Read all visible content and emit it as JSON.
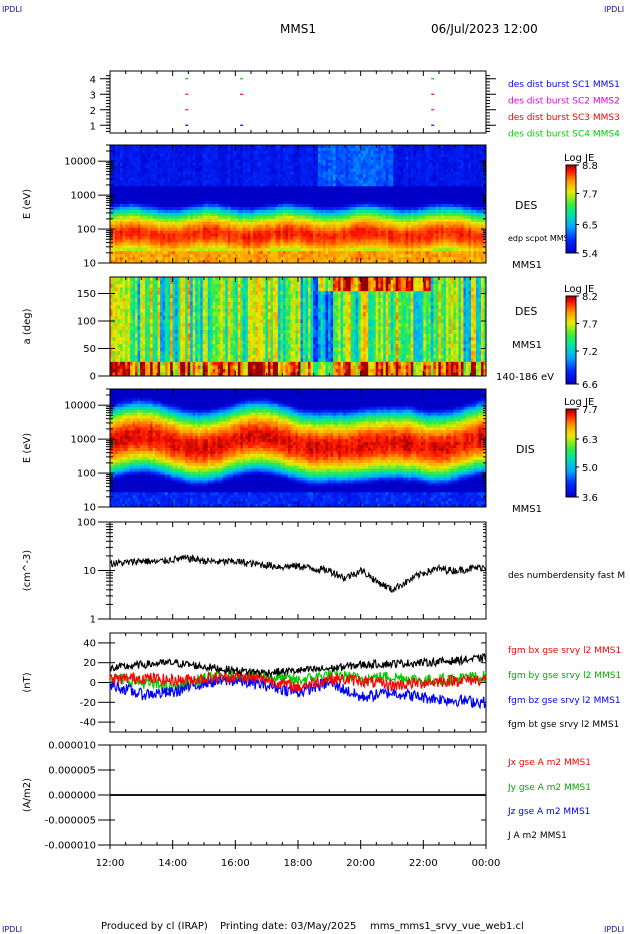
{
  "header": {
    "corner_left_top": "IPDLI",
    "corner_right_top": "IPDLI",
    "mission": "MMS1",
    "datetime": "06/Jul/2023 12:00",
    "corner_left_bottom": "IPDLI",
    "corner_right_bottom": "IPDLI"
  },
  "footer": {
    "produced_by": "Produced by cl (IRAP)",
    "printing_date": "Printing date: 03/May/2025",
    "file": "mms_mms1_srvy_vue_web1.cl"
  },
  "colors": {
    "blue": "#0000ff",
    "magenta": "#e000e0",
    "red": "#ff0000",
    "green": "#00cc00",
    "black": "#000000"
  },
  "chart_data": [
    {
      "id": "burst",
      "type": "scatter",
      "ylim": [
        0.5,
        4.5
      ],
      "yticks": [
        "1",
        "2",
        "3",
        "4"
      ],
      "series": [
        {
          "name": "des dist burst SC1 MMS1",
          "color": "#0000ff",
          "y": 1,
          "x": [
            14.45,
            16.2,
            22.3
          ]
        },
        {
          "name": "des dist burst SC2 MMS2",
          "color": "#e000e0",
          "y": 2,
          "x": [
            14.45,
            22.3
          ]
        },
        {
          "name": "des dist burst SC3 MMS3",
          "color": "#ff0000",
          "y": 3,
          "x": [
            14.45,
            16.2,
            22.3
          ]
        },
        {
          "name": "des dist burst SC4 MMS4",
          "color": "#00cc00",
          "y": 4,
          "x": [
            14.45,
            16.2,
            22.3
          ]
        }
      ]
    },
    {
      "id": "des_energy",
      "type": "heatmap",
      "ylabel": "E (eV)",
      "yscale": "log",
      "ylim": [
        10,
        30000
      ],
      "yticks": [
        "10",
        "100",
        "1000",
        "10000"
      ],
      "label": "DES",
      "sublabel": "MMS1",
      "overlay_label": "edp scpot MMS1",
      "colorbar": {
        "title": "Log JE",
        "ticks": [
          "8.8",
          "7.7",
          "6.5",
          "5.4"
        ],
        "range": [
          5.4,
          8.8
        ]
      }
    },
    {
      "id": "des_pitch",
      "type": "heatmap",
      "ylabel": "a (deg)",
      "ylim": [
        0,
        180
      ],
      "yticks": [
        "0",
        "50",
        "100",
        "150"
      ],
      "label": "DES",
      "sublabel": "MMS1",
      "energy_range": "140-186 eV",
      "colorbar": {
        "title": "Log JE",
        "ticks": [
          "8.2",
          "7.7",
          "7.2",
          "6.6"
        ],
        "range": [
          6.6,
          8.2
        ]
      }
    },
    {
      "id": "dis_energy",
      "type": "heatmap",
      "ylabel": "E (eV)",
      "yscale": "log",
      "ylim": [
        10,
        30000
      ],
      "yticks": [
        "10",
        "100",
        "1000",
        "10000"
      ],
      "label": "DIS",
      "sublabel": "MMS1",
      "colorbar": {
        "title": "Log JE",
        "ticks": [
          "7.7",
          "6.3",
          "5.0",
          "3.6"
        ],
        "range": [
          3.6,
          7.7
        ]
      }
    },
    {
      "id": "density",
      "type": "line",
      "ylabel": "(cm^-3)",
      "yscale": "log",
      "ylim": [
        1,
        100
      ],
      "yticks": [
        "1",
        "10",
        "100"
      ],
      "series": [
        {
          "name": "des numberdensity fast M",
          "color": "#000000",
          "x": [
            12,
            12.5,
            13,
            13.5,
            14,
            14.5,
            15,
            15.5,
            16,
            16.5,
            17,
            17.5,
            18,
            18.5,
            19,
            19.5,
            20,
            20.5,
            21,
            21.5,
            22,
            22.5,
            23,
            23.5,
            24
          ],
          "y": [
            14,
            14.5,
            16,
            15,
            17,
            18,
            16,
            15,
            15.5,
            14,
            13,
            12,
            12.5,
            11,
            10,
            7,
            10,
            6,
            4,
            6,
            9,
            11,
            10,
            11,
            12
          ]
        }
      ]
    },
    {
      "id": "bfield",
      "type": "line",
      "ylabel": "(nT)",
      "ylim": [
        -50,
        50
      ],
      "yticks": [
        "-40",
        "-20",
        "0",
        "20",
        "40"
      ],
      "series": [
        {
          "name": "fgm bx gse srvy l2 MMS1",
          "color": "#ff0000",
          "x": [
            12,
            13,
            14,
            15,
            16,
            17,
            18,
            19,
            20,
            21,
            22,
            23,
            24
          ],
          "y": [
            3,
            5,
            2,
            4,
            6,
            3,
            -5,
            4,
            2,
            -3,
            0,
            2,
            3
          ]
        },
        {
          "name": "fgm by gse srvy l2 MMS1",
          "color": "#00cc00",
          "x": [
            12,
            13,
            14,
            15,
            16,
            17,
            18,
            19,
            20,
            21,
            22,
            23,
            24
          ],
          "y": [
            5,
            0,
            -5,
            4,
            8,
            6,
            2,
            8,
            4,
            6,
            2,
            4,
            6
          ]
        },
        {
          "name": "fgm bz gse srvy l2 MMS1",
          "color": "#0000ff",
          "x": [
            12,
            13,
            14,
            15,
            16,
            17,
            18,
            19,
            20,
            21,
            22,
            23,
            24
          ],
          "y": [
            -2,
            -12,
            -10,
            0,
            2,
            -3,
            -10,
            0,
            -15,
            -10,
            -15,
            -18,
            -20
          ]
        },
        {
          "name": "fgm bt gse srvy l2 MMS1",
          "color": "#000000",
          "x": [
            12,
            13,
            14,
            15,
            16,
            17,
            18,
            19,
            20,
            21,
            22,
            23,
            24
          ],
          "y": [
            14,
            18,
            20,
            16,
            12,
            10,
            12,
            14,
            18,
            19,
            20,
            22,
            25
          ]
        }
      ]
    },
    {
      "id": "current",
      "type": "line",
      "ylabel": "(A/m2)",
      "ylim": [
        -1e-05,
        1e-05
      ],
      "yticks": [
        "-0.000010",
        "-0.000005",
        "0.000000",
        "0.000005",
        "0.000010"
      ],
      "series": [
        {
          "name": "Jx gse A m2 MMS1",
          "color": "#ff0000",
          "x": [
            12,
            24
          ],
          "y": [
            0,
            0
          ]
        },
        {
          "name": "Jy gse A m2 MMS1",
          "color": "#00cc00",
          "x": [
            12,
            24
          ],
          "y": [
            0,
            0
          ]
        },
        {
          "name": "Jz gse A m2 MMS1",
          "color": "#0000ff",
          "x": [
            12,
            24
          ],
          "y": [
            0,
            0
          ]
        },
        {
          "name": "J A m2 MMS1",
          "color": "#000000",
          "x": [
            12,
            24
          ],
          "y": [
            0,
            0
          ]
        }
      ]
    }
  ],
  "time_axis": {
    "xlim": [
      12,
      24
    ],
    "ticks": [
      "12:00",
      "14:00",
      "16:00",
      "18:00",
      "20:00",
      "22:00",
      "00:00"
    ]
  }
}
